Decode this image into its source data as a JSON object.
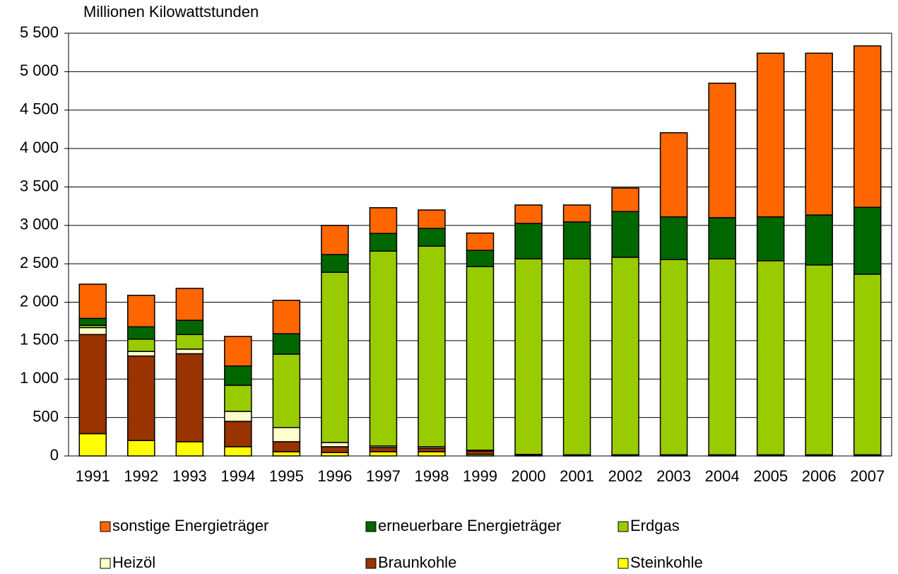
{
  "chart_data": {
    "type": "stacked_bar",
    "y_axis_label": "Millionen Kilowattstunden",
    "categories": [
      "1991",
      "1992",
      "1993",
      "1994",
      "1995",
      "1996",
      "1997",
      "1998",
      "1999",
      "2000",
      "2001",
      "2002",
      "2003",
      "2004",
      "2005",
      "2006",
      "2007"
    ],
    "series": [
      {
        "name": "Steinkohle",
        "color": "#ffff00",
        "values": [
          290,
          200,
          185,
          120,
          55,
          45,
          55,
          55,
          20,
          5,
          5,
          5,
          5,
          5,
          5,
          5,
          5
        ]
      },
      {
        "name": "Braunkohle",
        "color": "#993300",
        "values": [
          1290,
          1100,
          1145,
          330,
          130,
          75,
          55,
          45,
          45,
          10,
          5,
          5,
          5,
          5,
          5,
          5,
          5
        ]
      },
      {
        "name": "Heizöl",
        "color": "#ffffcc",
        "values": [
          90,
          60,
          60,
          130,
          185,
          55,
          20,
          20,
          10,
          5,
          5,
          5,
          5,
          5,
          5,
          5,
          5
        ]
      },
      {
        "name": "Erdgas",
        "color": "#99cc00",
        "values": [
          30,
          160,
          190,
          340,
          955,
          2215,
          2535,
          2610,
          2390,
          2545,
          2550,
          2570,
          2540,
          2550,
          2525,
          2470,
          2350
        ]
      },
      {
        "name": "erneuerbare Energieträger",
        "color": "#006600",
        "values": [
          90,
          160,
          185,
          250,
          265,
          230,
          230,
          230,
          210,
          460,
          480,
          595,
          555,
          535,
          570,
          650,
          870
        ]
      },
      {
        "name": "sonstige Energieträger",
        "color": "#ff6600",
        "values": [
          445,
          410,
          415,
          385,
          435,
          380,
          335,
          240,
          225,
          240,
          220,
          305,
          1095,
          1750,
          2130,
          2105,
          2100
        ]
      }
    ],
    "ylim": [
      0,
      5500
    ],
    "yticks": [
      0,
      500,
      {
        "value": 1000,
        "label": "1 000"
      },
      {
        "value": 1500,
        "label": "1 500"
      },
      {
        "value": 2000,
        "label": "2 000"
      },
      {
        "value": 2500,
        "label": "2 500"
      },
      {
        "value": 3000,
        "label": "3 000"
      },
      {
        "value": 3500,
        "label": "3 500"
      },
      {
        "value": 4000,
        "label": "4 000"
      },
      {
        "value": 4500,
        "label": "4 500"
      },
      {
        "value": 5000,
        "label": "5 000"
      },
      {
        "value": 5500,
        "label": "5 500"
      }
    ],
    "grid": true
  }
}
